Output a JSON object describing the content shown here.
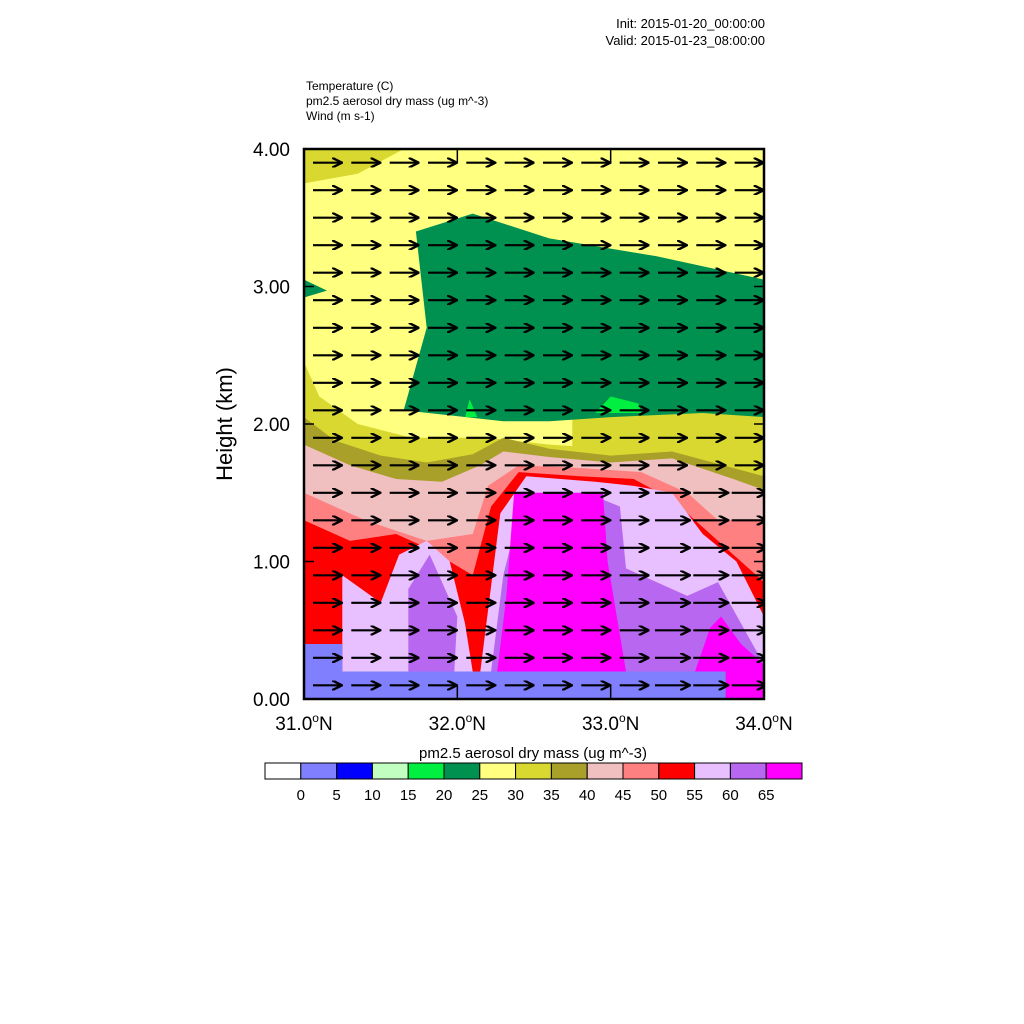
{
  "header": {
    "init": "Init: 2015-01-20_00:00:00",
    "valid": "Valid: 2015-01-23_08:00:00"
  },
  "variables": [
    "Temperature   (C)",
    "pm2.5 aerosol dry mass   (ug m^-3)",
    "Wind   (m s-1)"
  ],
  "chart_data": {
    "type": "heatmap",
    "title": "",
    "ylabel": "Height (km)",
    "xlabel": "",
    "xlim": [
      31.0,
      34.0
    ],
    "ylim": [
      0.0,
      4.0
    ],
    "x_ticks": [
      31.0,
      32.0,
      33.0,
      34.0
    ],
    "x_tick_labels": [
      "31.0",
      "32.0",
      "33.0",
      "34.0"
    ],
    "x_tick_suffix": "N",
    "y_ticks": [
      0.0,
      1.0,
      2.0,
      3.0,
      4.0
    ],
    "y_tick_labels": [
      "0.00",
      "1.00",
      "2.00",
      "3.00",
      "4.00"
    ],
    "colorbar": {
      "label": "pm2.5 aerosol dry mass  (ug m^-3)",
      "levels": [
        0,
        5,
        10,
        15,
        20,
        25,
        30,
        35,
        40,
        45,
        50,
        55,
        60,
        65
      ],
      "colors": [
        "#ffffff",
        "#8080ff",
        "#0000ff",
        "#c0ffc0",
        "#00ef40",
        "#009050",
        "#ffff80",
        "#d8d830",
        "#a8a028",
        "#f0c0c0",
        "#ff8080",
        "#ff0000",
        "#e8c0ff",
        "#b868f0",
        "#ff00ff"
      ]
    },
    "wind": {
      "direction": "eastward",
      "x_step": 0.25,
      "y_step": 0.2
    },
    "layers": [
      {
        "level": 25,
        "points": [
          [
            31.0,
            4.0
          ],
          [
            34.0,
            4.0
          ],
          [
            34.0,
            1.8
          ],
          [
            31.0,
            1.8
          ]
        ]
      },
      {
        "level": 30,
        "points": [
          [
            31.0,
            4.0
          ],
          [
            31.65,
            4.0
          ],
          [
            31.35,
            3.82
          ],
          [
            31.0,
            3.75
          ]
        ]
      },
      {
        "level": 30,
        "points": [
          [
            32.75,
            2.3
          ],
          [
            34.0,
            2.3
          ],
          [
            34.0,
            1.65
          ],
          [
            32.75,
            1.65
          ]
        ]
      },
      {
        "level": 20,
        "points": [
          [
            31.73,
            3.4
          ],
          [
            32.1,
            3.53
          ],
          [
            32.6,
            3.35
          ],
          [
            33.3,
            3.22
          ],
          [
            34.0,
            3.05
          ],
          [
            34.0,
            2.05
          ],
          [
            33.6,
            2.08
          ],
          [
            33.0,
            2.05
          ],
          [
            32.6,
            2.02
          ],
          [
            32.3,
            2.02
          ],
          [
            31.65,
            2.1
          ],
          [
            31.8,
            2.7
          ]
        ]
      },
      {
        "level": 20,
        "points": [
          [
            31.0,
            3.05
          ],
          [
            31.15,
            2.97
          ],
          [
            31.0,
            2.92
          ]
        ]
      },
      {
        "level": 15,
        "points": [
          [
            32.05,
            2.05
          ],
          [
            32.08,
            2.18
          ],
          [
            32.13,
            2.05
          ]
        ]
      },
      {
        "level": 15,
        "points": [
          [
            32.9,
            2.08
          ],
          [
            33.0,
            2.2
          ],
          [
            33.18,
            2.15
          ],
          [
            33.2,
            2.08
          ]
        ]
      },
      {
        "level": 30,
        "points": [
          [
            31.0,
            2.45
          ],
          [
            31.1,
            2.2
          ],
          [
            31.35,
            2.0
          ],
          [
            31.7,
            1.9
          ],
          [
            32.2,
            1.9
          ],
          [
            32.6,
            1.85
          ],
          [
            33.0,
            1.82
          ],
          [
            33.4,
            1.85
          ],
          [
            33.8,
            1.78
          ],
          [
            34.0,
            1.72
          ],
          [
            34.0,
            0.0
          ],
          [
            31.0,
            0.0
          ]
        ]
      },
      {
        "level": 35,
        "points": [
          [
            31.0,
            2.05
          ],
          [
            31.2,
            1.88
          ],
          [
            31.5,
            1.77
          ],
          [
            31.8,
            1.72
          ],
          [
            32.1,
            1.78
          ],
          [
            32.3,
            1.9
          ],
          [
            32.6,
            1.82
          ],
          [
            33.0,
            1.77
          ],
          [
            33.4,
            1.8
          ],
          [
            33.8,
            1.68
          ],
          [
            34.0,
            1.62
          ],
          [
            34.0,
            0.0
          ],
          [
            31.0,
            0.0
          ]
        ]
      },
      {
        "level": 40,
        "points": [
          [
            31.0,
            1.85
          ],
          [
            31.3,
            1.7
          ],
          [
            31.6,
            1.6
          ],
          [
            31.9,
            1.58
          ],
          [
            32.15,
            1.7
          ],
          [
            32.3,
            1.8
          ],
          [
            32.6,
            1.76
          ],
          [
            33.0,
            1.72
          ],
          [
            33.4,
            1.75
          ],
          [
            33.8,
            1.6
          ],
          [
            34.0,
            1.52
          ],
          [
            34.0,
            0.0
          ],
          [
            31.0,
            0.0
          ]
        ]
      },
      {
        "level": 45,
        "points": [
          [
            31.0,
            1.5
          ],
          [
            31.4,
            1.3
          ],
          [
            31.8,
            1.15
          ],
          [
            32.1,
            1.2
          ],
          [
            32.2,
            1.55
          ],
          [
            32.4,
            1.7
          ],
          [
            32.8,
            1.68
          ],
          [
            33.2,
            1.65
          ],
          [
            33.5,
            1.5
          ],
          [
            33.7,
            1.3
          ],
          [
            34.0,
            1.3
          ],
          [
            34.0,
            0.0
          ],
          [
            31.0,
            0.0
          ]
        ]
      },
      {
        "level": 50,
        "points": [
          [
            31.0,
            1.3
          ],
          [
            31.3,
            1.15
          ],
          [
            31.6,
            1.2
          ],
          [
            31.8,
            1.1
          ],
          [
            32.1,
            0.9
          ],
          [
            32.22,
            1.4
          ],
          [
            32.4,
            1.65
          ],
          [
            32.8,
            1.62
          ],
          [
            33.15,
            1.6
          ],
          [
            33.4,
            1.45
          ],
          [
            33.7,
            1.15
          ],
          [
            34.0,
            0.85
          ],
          [
            34.0,
            0.0
          ],
          [
            31.0,
            0.0
          ]
        ]
      },
      {
        "level": 55,
        "points": [
          [
            31.25,
            0.2
          ],
          [
            31.25,
            0.9
          ],
          [
            31.5,
            0.7
          ],
          [
            31.62,
            1.05
          ],
          [
            31.8,
            1.15
          ],
          [
            31.95,
            1.0
          ],
          [
            32.05,
            0.55
          ],
          [
            32.1,
            0.2
          ]
        ]
      },
      {
        "level": 55,
        "points": [
          [
            32.15,
            0.2
          ],
          [
            32.28,
            1.35
          ],
          [
            32.45,
            1.62
          ],
          [
            32.9,
            1.58
          ],
          [
            33.15,
            1.55
          ],
          [
            33.4,
            1.5
          ],
          [
            33.6,
            1.2
          ],
          [
            33.82,
            1.0
          ],
          [
            34.0,
            0.6
          ],
          [
            34.0,
            0.2
          ]
        ]
      },
      {
        "level": 60,
        "points": [
          [
            31.68,
            0.2
          ],
          [
            31.68,
            0.8
          ],
          [
            31.82,
            1.05
          ],
          [
            32.0,
            0.6
          ],
          [
            31.98,
            0.2
          ]
        ]
      },
      {
        "level": 60,
        "points": [
          [
            32.22,
            0.2
          ],
          [
            32.3,
            0.9
          ],
          [
            32.4,
            1.35
          ],
          [
            32.45,
            1.45
          ],
          [
            32.95,
            1.45
          ],
          [
            33.06,
            1.4
          ],
          [
            33.1,
            0.95
          ],
          [
            33.5,
            0.75
          ],
          [
            33.7,
            0.85
          ],
          [
            33.85,
            0.55
          ],
          [
            34.0,
            0.25
          ],
          [
            34.0,
            0.2
          ]
        ]
      },
      {
        "level": 65,
        "points": [
          [
            32.26,
            0.2
          ],
          [
            32.32,
            0.75
          ],
          [
            32.37,
            1.5
          ],
          [
            32.95,
            1.5
          ],
          [
            32.98,
            1.0
          ],
          [
            33.1,
            0.2
          ]
        ]
      },
      {
        "level": 65,
        "points": [
          [
            33.55,
            0.2
          ],
          [
            33.65,
            0.52
          ],
          [
            33.72,
            0.6
          ],
          [
            33.85,
            0.4
          ],
          [
            34.0,
            0.25
          ],
          [
            34.0,
            0.2
          ]
        ]
      },
      {
        "level": 70,
        "points": [
          [
            32.45,
            0.2
          ],
          [
            32.48,
            0.9
          ],
          [
            32.58,
            1.38
          ],
          [
            32.68,
            1.35
          ],
          [
            32.75,
            0.8
          ],
          [
            32.8,
            0.2
          ]
        ]
      },
      {
        "level": 70,
        "points": [
          [
            33.75,
            0.0
          ],
          [
            33.75,
            0.28
          ],
          [
            33.87,
            0.28
          ],
          [
            34.0,
            0.2
          ],
          [
            34.0,
            0.0
          ]
        ]
      },
      {
        "level": 0,
        "points": [
          [
            31.0,
            0.4
          ],
          [
            31.25,
            0.4
          ],
          [
            31.25,
            0.2
          ],
          [
            33.75,
            0.2
          ],
          [
            33.75,
            0.0
          ],
          [
            31.0,
            0.0
          ]
        ]
      }
    ]
  }
}
